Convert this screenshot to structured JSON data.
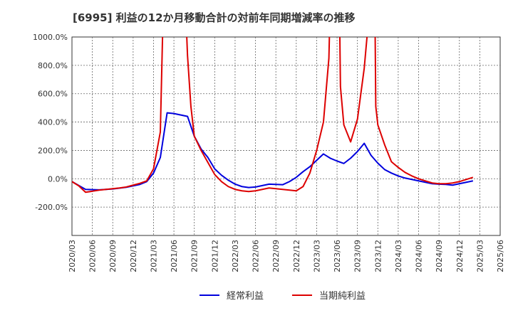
{
  "title": "[6995]  利益の12か月移動合計の対前年同期増減率の推移",
  "chart_data": {
    "type": "line",
    "title": "[6995]  利益の12か月移動合計の対前年同期増減率の推移",
    "xlabel": "",
    "ylabel": "",
    "ylim": [
      -400,
      1000
    ],
    "y_ticks": [
      1000,
      800,
      600,
      400,
      200,
      0,
      -200
    ],
    "y_tick_labels": [
      "1000.0%",
      "800.0%",
      "600.0%",
      "400.0%",
      "200.0%",
      "0.0%",
      "-200.0%"
    ],
    "x_tick_labels": [
      "2020/03",
      "2020/06",
      "2020/09",
      "2020/12",
      "2021/03",
      "2021/06",
      "2021/09",
      "2021/12",
      "2022/03",
      "2022/06",
      "2022/09",
      "2022/12",
      "2023/03",
      "2023/06",
      "2023/09",
      "2023/12",
      "2024/03",
      "2024/06",
      "2024/09",
      "2024/12",
      "2025/03",
      "2025/06"
    ],
    "grid": true,
    "legend": "bottom-center",
    "series": [
      {
        "name": "経常利益",
        "color": "#0000dd",
        "points": [
          [
            0,
            -20
          ],
          [
            2,
            -75
          ],
          [
            4,
            -78
          ],
          [
            6,
            -72
          ],
          [
            8,
            -60
          ],
          [
            10,
            -40
          ],
          [
            11,
            -20
          ],
          [
            12,
            40
          ],
          [
            13,
            150
          ],
          [
            14,
            465
          ],
          [
            15,
            460
          ],
          [
            16,
            450
          ],
          [
            17,
            440
          ],
          [
            18,
            300
          ],
          [
            19,
            210
          ],
          [
            20,
            150
          ],
          [
            21,
            70
          ],
          [
            22,
            25
          ],
          [
            23,
            -10
          ],
          [
            24,
            -38
          ],
          [
            25,
            -55
          ],
          [
            26,
            -62
          ],
          [
            27,
            -58
          ],
          [
            28,
            -48
          ],
          [
            29,
            -38
          ],
          [
            30,
            -40
          ],
          [
            31,
            -42
          ],
          [
            32,
            -20
          ],
          [
            33,
            10
          ],
          [
            34,
            50
          ],
          [
            35,
            85
          ],
          [
            36,
            130
          ],
          [
            37,
            175
          ],
          [
            38,
            145
          ],
          [
            39,
            125
          ],
          [
            40,
            108
          ],
          [
            41,
            145
          ],
          [
            42,
            192
          ],
          [
            43,
            250
          ],
          [
            44,
            165
          ],
          [
            45,
            110
          ],
          [
            46,
            65
          ],
          [
            47,
            40
          ],
          [
            48,
            20
          ],
          [
            49,
            5
          ],
          [
            50,
            -5
          ],
          [
            51,
            -15
          ],
          [
            52,
            -25
          ],
          [
            53,
            -35
          ],
          [
            54,
            -38
          ],
          [
            55,
            -40
          ],
          [
            56,
            -45
          ],
          [
            57,
            -35
          ],
          [
            58,
            -25
          ],
          [
            59,
            -15
          ]
        ]
      },
      {
        "name": "当期純利益",
        "color": "#dd0000",
        "points": [
          [
            0,
            -20
          ],
          [
            1,
            -50
          ],
          [
            2,
            -95
          ],
          [
            3,
            -88
          ],
          [
            4,
            -80
          ],
          [
            5,
            -75
          ],
          [
            6,
            -70
          ],
          [
            7,
            -65
          ],
          [
            8,
            -58
          ],
          [
            9,
            -45
          ],
          [
            10,
            -32
          ],
          [
            11,
            -15
          ],
          [
            12,
            70
          ],
          [
            13,
            330
          ],
          [
            13.35,
            1050
          ],
          [
            16.85,
            1050
          ],
          [
            17,
            870
          ],
          [
            17.5,
            510
          ],
          [
            18,
            300
          ],
          [
            19,
            200
          ],
          [
            20,
            115
          ],
          [
            21,
            30
          ],
          [
            22,
            -20
          ],
          [
            23,
            -55
          ],
          [
            24,
            -75
          ],
          [
            25,
            -85
          ],
          [
            26,
            -90
          ],
          [
            27,
            -85
          ],
          [
            28,
            -75
          ],
          [
            29,
            -65
          ],
          [
            30,
            -70
          ],
          [
            31,
            -75
          ],
          [
            32,
            -80
          ],
          [
            33,
            -85
          ],
          [
            34,
            -55
          ],
          [
            35,
            40
          ],
          [
            36,
            200
          ],
          [
            37,
            400
          ],
          [
            37.8,
            850
          ],
          [
            37.9,
            1050
          ],
          [
            39.4,
            1050
          ],
          [
            39.5,
            650
          ],
          [
            40,
            380
          ],
          [
            41,
            260
          ],
          [
            42,
            420
          ],
          [
            43,
            780
          ],
          [
            43.5,
            1050
          ],
          [
            44.6,
            1050
          ],
          [
            44.7,
            510
          ],
          [
            45,
            380
          ],
          [
            46,
            240
          ],
          [
            47,
            120
          ],
          [
            48,
            80
          ],
          [
            49,
            45
          ],
          [
            50,
            20
          ],
          [
            51,
            0
          ],
          [
            52,
            -15
          ],
          [
            53,
            -30
          ],
          [
            54,
            -35
          ],
          [
            55,
            -35
          ],
          [
            56,
            -30
          ],
          [
            57,
            -20
          ],
          [
            58,
            -5
          ],
          [
            59,
            10
          ]
        ]
      }
    ]
  }
}
